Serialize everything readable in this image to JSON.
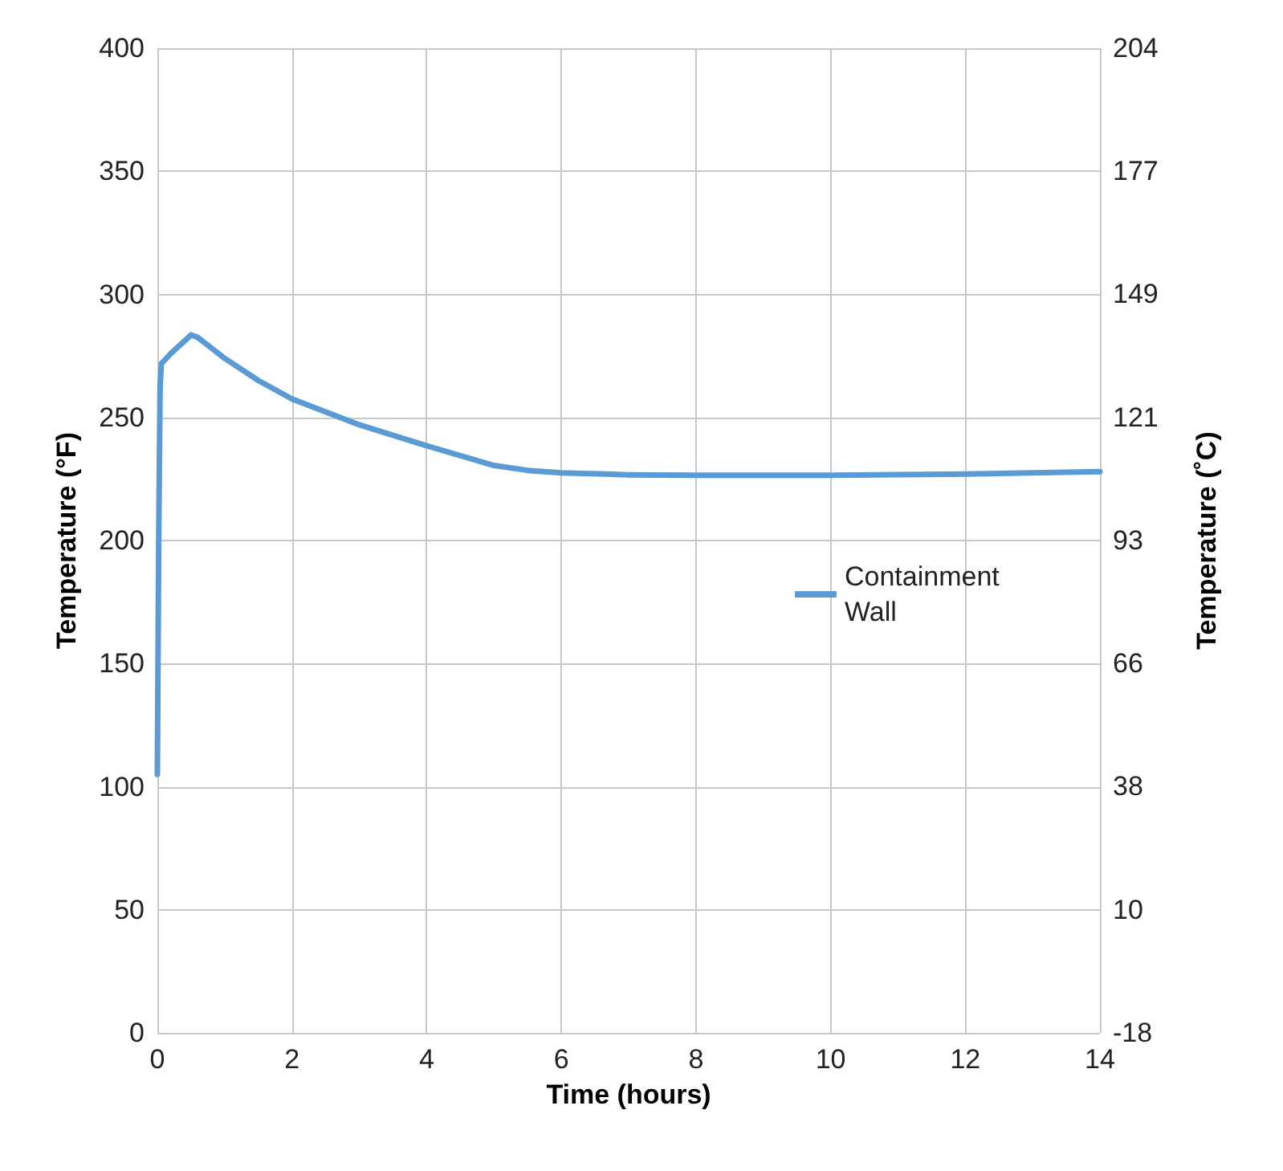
{
  "chart_data": {
    "type": "line",
    "xlabel": "Time (hours)",
    "ylabel": "Temperature (°F)",
    "y2label": "Temperature (˚C)",
    "xlim": [
      0,
      14
    ],
    "xticks": [
      0,
      2,
      4,
      6,
      8,
      10,
      12,
      14
    ],
    "ylim": [
      0,
      400
    ],
    "yticks": [
      0,
      50,
      100,
      150,
      200,
      250,
      300,
      350,
      400
    ],
    "y2lim": [
      -17.8,
      204.4
    ],
    "y2ticks": [
      {
        "value": -17.8,
        "label": "-18"
      },
      {
        "value": 10,
        "label": "10"
      },
      {
        "value": 37.8,
        "label": "38"
      },
      {
        "value": 65.6,
        "label": "66"
      },
      {
        "value": 93.3,
        "label": "93"
      },
      {
        "value": 121.1,
        "label": "121"
      },
      {
        "value": 148.9,
        "label": "149"
      },
      {
        "value": 176.7,
        "label": "177"
      },
      {
        "value": 204.4,
        "label": "204"
      }
    ],
    "grid": true,
    "legend": "right",
    "marker": "none",
    "line_style": "solid",
    "x": [
      0,
      0.02,
      0.04,
      0.06,
      0.1,
      0.2,
      0.5,
      0.6,
      1,
      1.5,
      2,
      3,
      4,
      5,
      5.5,
      6,
      7,
      8,
      10,
      12,
      14
    ],
    "series": [
      {
        "name": "Containment Wall",
        "color": "#5b9bd5",
        "values": [
          105,
          200,
          262,
          272,
          273,
          276,
          283.5,
          282.5,
          274,
          265,
          257.5,
          247,
          238.5,
          230.5,
          228.5,
          227.5,
          226.7,
          226.5,
          226.5,
          227,
          228
        ]
      }
    ]
  }
}
